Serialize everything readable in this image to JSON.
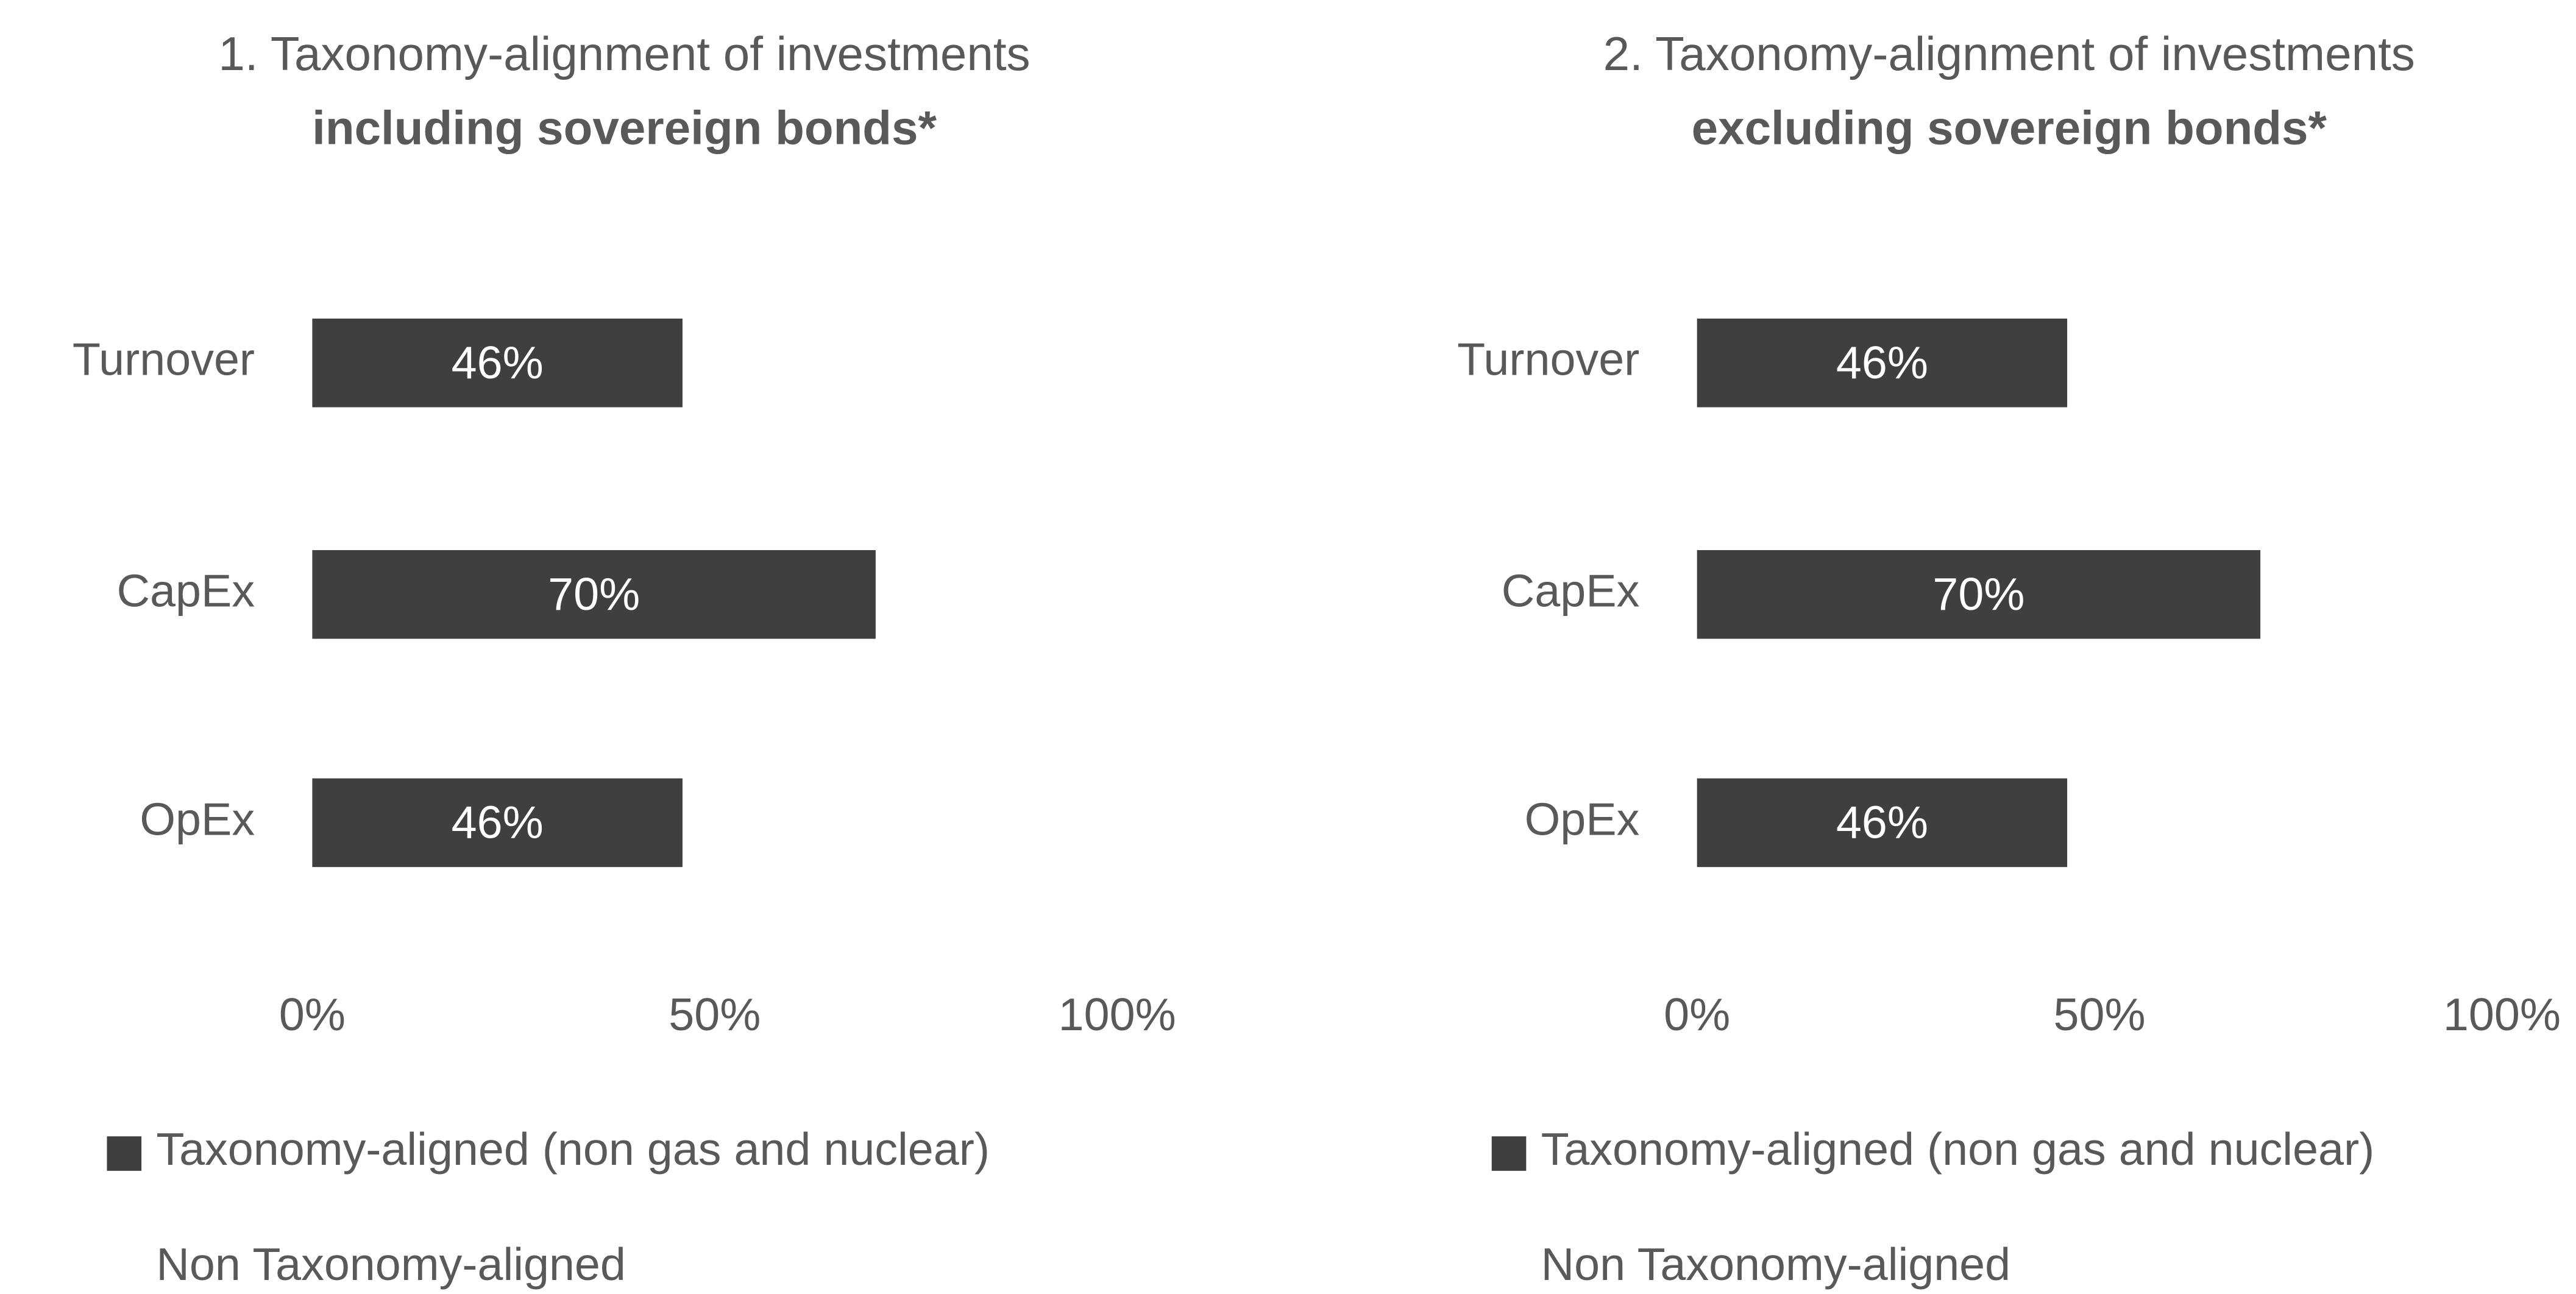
{
  "chart_data": [
    {
      "type": "bar",
      "orientation": "horizontal",
      "title": "1. Taxonomy-alignment of investments",
      "subtitle": "including sovereign bonds*",
      "categories": [
        "Turnover",
        "CapEx",
        "OpEx"
      ],
      "series": [
        {
          "name": "Taxonomy-aligned (non gas and nuclear)",
          "color": "#3f3f3f",
          "values": [
            46,
            70,
            46
          ],
          "value_labels": [
            "46%",
            "70%",
            "46%"
          ]
        },
        {
          "name": "Non Taxonomy-aligned",
          "color": "#ffffff",
          "values": [
            54,
            30,
            54
          ]
        }
      ],
      "xlim": [
        0,
        100
      ],
      "xticks": [
        {
          "value": 0,
          "label": "0%"
        },
        {
          "value": 50,
          "label": "50%"
        },
        {
          "value": 100,
          "label": "100%"
        }
      ],
      "stacked": true,
      "legend": "bottom-left"
    },
    {
      "type": "bar",
      "orientation": "horizontal",
      "title": "2. Taxonomy-alignment of investments",
      "subtitle": "excluding sovereign bonds*",
      "categories": [
        "Turnover",
        "CapEx",
        "OpEx"
      ],
      "series": [
        {
          "name": "Taxonomy-aligned (non gas and nuclear)",
          "color": "#3f3f3f",
          "values": [
            46,
            70,
            46
          ],
          "value_labels": [
            "46%",
            "70%",
            "46%"
          ]
        },
        {
          "name": "Non Taxonomy-aligned",
          "color": "#ffffff",
          "values": [
            54,
            30,
            54
          ]
        }
      ],
      "xlim": [
        0,
        100
      ],
      "xticks": [
        {
          "value": 0,
          "label": "0%"
        },
        {
          "value": 50,
          "label": "50%"
        },
        {
          "value": 100,
          "label": "100%"
        }
      ],
      "stacked": true,
      "legend": "bottom-left"
    }
  ]
}
